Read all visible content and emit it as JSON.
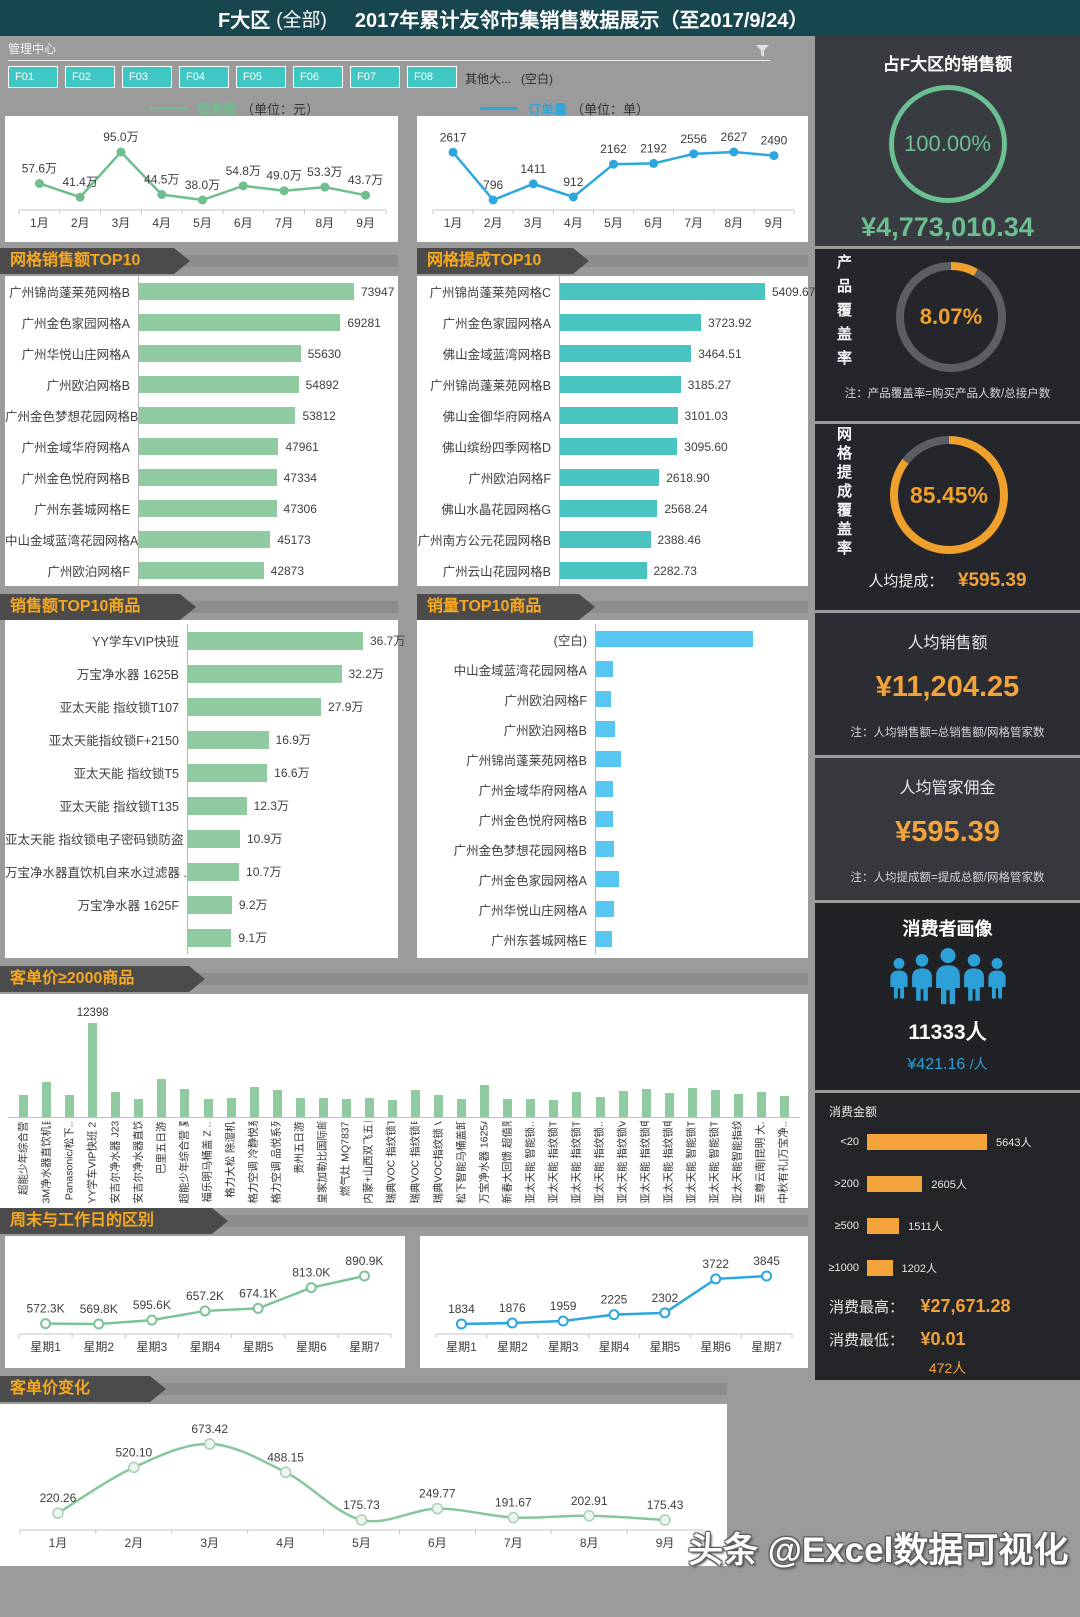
{
  "header": {
    "title_region": "F大区",
    "title_scope": "(全部)",
    "title_main": "2017年累计友邻市集销售数据展示（至2017/9/24）"
  },
  "filter": {
    "label": "管理中心",
    "buttons": [
      "F01",
      "F02",
      "F03",
      "F04",
      "F05",
      "F06",
      "F07",
      "F08"
    ],
    "more": "其他大...",
    "blank": "(空白)"
  },
  "legend": {
    "sales_label": "销售额",
    "sales_unit": "（单位：元）",
    "orders_label": "订单量",
    "orders_unit": "（单位：单）"
  },
  "banners": {
    "grid_sales": "网格销售额TOP10",
    "grid_commission": "网格提成TOP10",
    "product_sales": "销售额TOP10商品",
    "quantity": "销量TOP10商品",
    "price2000": "客单价≥2000商品",
    "weekday": "周末与工作日的区别",
    "price_change": "客单价变化"
  },
  "colors": {
    "button_teal": "#3fc8c3",
    "line_green": "#6fbe8d",
    "line_blue": "#2ba7de",
    "bar_green": "#8fcaa0",
    "bar_teal": "#49c4c0",
    "bar_blue": "#57c7f2",
    "accent_orange": "#f2a33c",
    "accent_green": "#6cbf90",
    "accent_blue": "#2da0d8"
  },
  "chart_data": [
    {
      "id": "sales_by_month",
      "type": "line",
      "title": "销售额（单位：元）",
      "color": "#6fbe8d",
      "x": [
        "1月",
        "2月",
        "3月",
        "4月",
        "5月",
        "6月",
        "7月",
        "8月",
        "9月"
      ],
      "values": [
        57.6,
        41.4,
        95.0,
        44.5,
        38.0,
        54.8,
        49.0,
        53.3,
        43.7
      ],
      "point_labels": [
        "57.6万",
        "41.4万",
        "95.0万",
        "44.5万",
        "38.0万",
        "54.8万",
        "49.0万",
        "53.3万",
        "43.7万"
      ]
    },
    {
      "id": "orders_by_month",
      "type": "line",
      "title": "订单量（单位：单）",
      "color": "#2ba7de",
      "x": [
        "1月",
        "2月",
        "3月",
        "4月",
        "5月",
        "6月",
        "7月",
        "8月",
        "9月"
      ],
      "values": [
        2617,
        796,
        1411,
        912,
        2162,
        2192,
        2556,
        2627,
        2490
      ],
      "point_labels": [
        "2617",
        "796",
        "1411",
        "912",
        "2162",
        "2192",
        "2556",
        "2627",
        "2490"
      ]
    },
    {
      "id": "grid_sales_top10",
      "type": "bar",
      "title": "网格销售额TOP10",
      "color": "#8fcaa0",
      "categories": [
        "广州锦尚蓬莱苑网格B",
        "广州金色家园网格A",
        "广州华悦山庄网格A",
        "广州欧泊网格B",
        "广州金色梦想花园网格B",
        "广州金域华府网格A",
        "广州金色悦府网格B",
        "广州东荟城网格E",
        "中山金域蓝湾花园网格A",
        "广州欧泊网格F"
      ],
      "values": [
        73947,
        69281,
        55630,
        54892,
        53812,
        47961,
        47334,
        47306,
        45173,
        42873
      ],
      "value_labels": [
        "73947",
        "69281",
        "55630",
        "54892",
        "53812",
        "47961",
        "47334",
        "47306",
        "45173",
        "42873"
      ]
    },
    {
      "id": "grid_commission_top10",
      "type": "bar",
      "title": "网格提成TOP10",
      "color": "#49c4c0",
      "categories": [
        "广州锦尚蓬莱苑网格C",
        "广州金色家园网格A",
        "佛山金域蓝湾网格B",
        "广州锦尚蓬莱苑网格B",
        "佛山金御华府网格A",
        "佛山缤纷四季网格D",
        "广州欧泊网格F",
        "佛山水晶花园网格G",
        "广州南方公元花园网格B",
        "广州云山花园网格B"
      ],
      "values": [
        5409.67,
        3723.92,
        3464.51,
        3185.27,
        3101.03,
        3095.6,
        2618.9,
        2568.24,
        2388.46,
        2282.73
      ],
      "value_labels": [
        "5409.67",
        "3723.92",
        "3464.51",
        "3185.27",
        "3101.03",
        "3095.60",
        "2618.90",
        "2568.24",
        "2388.46",
        "2282.73"
      ]
    },
    {
      "id": "product_sales_top10",
      "type": "bar",
      "title": "销售额TOP10商品",
      "color": "#8fcaa0",
      "categories": [
        "YY学车VIP快班",
        "万宝净水器 1625B",
        "亚太天能 指纹锁T107",
        "亚太天能指纹锁F+2150",
        "亚太天能 指纹锁T5",
        "亚太天能 指纹锁T135",
        "亚太天能 指纹锁电子密码锁防盗 ...",
        "万宝净水器直饮机自来水过滤器 ...",
        "万宝净水器 1625F",
        ""
      ],
      "values": [
        36.7,
        32.2,
        27.9,
        16.9,
        16.6,
        12.3,
        10.9,
        10.7,
        9.2,
        9.1
      ],
      "value_labels": [
        "36.7万",
        "32.2万",
        "27.9万",
        "16.9万",
        "16.6万",
        "12.3万",
        "10.9万",
        "10.7万",
        "9.2万",
        "9.1万"
      ]
    },
    {
      "id": "quantity_top10",
      "type": "bar",
      "title": "销量TOP10商品",
      "color": "#57c7f2",
      "categories": [
        "(空白)",
        "中山金域蓝湾花园网格A",
        "广州欧泊网格F",
        "广州欧泊网格B",
        "广州锦尚蓬莱苑网格B",
        "广州金域华府网格A",
        "广州金色悦府网格B",
        "广州金色梦想花园网格B",
        "广州金色家园网格A",
        "广州华悦山庄网格A",
        "广州东荟城网格E"
      ],
      "values": [
        4710,
        510,
        450,
        570,
        750,
        510,
        510,
        540,
        690,
        540,
        480
      ]
    },
    {
      "id": "price_over_2000",
      "type": "column",
      "title": "客单价≥2000商品",
      "color": "#8fcaa0",
      "categories": [
        "超能少年综合营",
        "3M净水器直饮机自..",
        "Panasonic/松下..",
        "YY学车VIP快班 2人团",
        "安吉尔净水器 J2305",
        "安吉尔净水器直饮..",
        "巴里五日游",
        "超能少年综合营 夏..",
        "福乐明马桶盖 Z ..",
        "格力大松 除湿机",
        "格力空调 冷静悦系..",
        "格力空调 品悦系列..",
        "贵州五日游",
        "皇家加勒比国际邮轮",
        "燃气灶 MQ7837",
        "内蒙+山西双飞五日游",
        "瑞典VOC 指纹锁T77",
        "瑞典VOC 指纹锁电..",
        "瑞典VOC指纹锁 V77",
        "松下智能马桶盖卸..",
        "万宝净水器 1625A",
        "新春大回馈 超值限购",
        "亚太天能 智能锁..",
        "亚太天能 指纹锁T107",
        "亚太天能 指纹锁T135",
        "亚太天能 指纹锁..",
        "亚太天能 指纹锁V5",
        "亚太天能 指纹锁电..",
        "亚太天能 指纹锁电..",
        "亚太天能 智能锁T107",
        "亚太天能 智能锁T9",
        "亚太天能智能指纹..",
        "至尊云南|昆明 大..",
        "中秋有礼|万宝净.."
      ],
      "values": [
        2900,
        4650,
        2900,
        12398,
        3350,
        2400,
        4950,
        3750,
        2400,
        2450,
        4000,
        3500,
        2500,
        2550,
        2400,
        2500,
        2250,
        3500,
        2900,
        2350,
        4200,
        2350,
        2350,
        2300,
        3300,
        2700,
        3400,
        3700,
        3100,
        3850,
        3500,
        3050,
        3350,
        2800
      ],
      "value_labels": [
        "",
        "",
        "",
        "12398",
        "",
        "",
        "",
        "",
        "",
        "",
        "",
        "",
        "",
        "",
        "",
        "",
        "",
        "",
        "",
        "",
        "",
        "",
        "",
        "",
        "",
        "",
        "",
        "",
        "",
        "",
        "",
        "",
        "",
        ""
      ]
    },
    {
      "id": "weekday_sales",
      "type": "line",
      "title": "周末与工作日的区别（销售额）",
      "color": "#7cc398",
      "x": [
        "星期1",
        "星期2",
        "星期3",
        "星期4",
        "星期5",
        "星期6",
        "星期7"
      ],
      "values": [
        572.3,
        569.8,
        595.6,
        657.2,
        674.1,
        813.0,
        890.9
      ],
      "point_labels": [
        "572.3K",
        "569.8K",
        "595.6K",
        "657.2K",
        "674.1K",
        "813.0K",
        "890.9K"
      ]
    },
    {
      "id": "weekday_orders",
      "type": "line",
      "title": "周末与工作日的区别（订单量）",
      "color": "#2ba7de",
      "x": [
        "星期1",
        "星期2",
        "星期3",
        "星期4",
        "星期5",
        "星期6",
        "星期7"
      ],
      "values": [
        1834,
        1876,
        1959,
        2225,
        2302,
        3722,
        3845
      ],
      "point_labels": [
        "1834",
        "1876",
        "1959",
        "2225",
        "2302",
        "3722",
        "3845"
      ]
    },
    {
      "id": "price_change",
      "type": "line",
      "title": "客单价变化",
      "color": "#86c79c",
      "x": [
        "1月",
        "2月",
        "3月",
        "4月",
        "5月",
        "6月",
        "7月",
        "8月",
        "9月"
      ],
      "values": [
        220.26,
        520.1,
        673.42,
        488.15,
        175.73,
        249.77,
        191.67,
        202.91,
        175.43
      ],
      "point_labels": [
        "220.26",
        "520.10",
        "673.42",
        "488.15",
        "175.73",
        "249.77",
        "191.67",
        "202.91",
        "175.43"
      ]
    },
    {
      "id": "consume_amount",
      "type": "bar",
      "title": "消费金额",
      "color": "#f2a33c",
      "categories": [
        "<20",
        ">200",
        "≥500",
        "≥1000"
      ],
      "values": [
        5643,
        2605,
        1511,
        1202
      ],
      "value_labels": [
        "5643人",
        "2605人",
        "1511人",
        "1202人"
      ]
    }
  ],
  "right_panel": {
    "sales_share": {
      "title": "占F大区的销售额",
      "percent": "100.00%",
      "amount": "¥4,773,010.34"
    },
    "product_coverage": {
      "title": "产品覆盖率",
      "percent": "8.07%",
      "pct": 8.07,
      "note": "注：产品覆盖率=购买产品人数/总接户数"
    },
    "commission_coverage": {
      "title": "网格提成覆盖率",
      "percent": "85.45%",
      "pct": 85.45,
      "per_label": "人均提成：",
      "per_value": "¥595.39"
    },
    "avg_sales": {
      "title": "人均销售额",
      "value": "¥11,204.25",
      "note": "注：人均销售额=总销售额/网格管家数"
    },
    "avg_commission": {
      "title": "人均管家佣金",
      "value": "¥595.39",
      "note": "注：人均提成额=提成总额/网格管家数"
    },
    "consumers": {
      "title": "消费者画像",
      "count": "11333人",
      "per": "¥421.16",
      "per_suffix": "/人"
    },
    "consume": {
      "title": "消费金额",
      "max_label": "消费最高：",
      "max_value": "¥27,671.28",
      "min_label": "消费最低：",
      "min_value": "¥0.01",
      "footer": "472人"
    }
  },
  "watermark": "头条 @Excel数据可视化"
}
